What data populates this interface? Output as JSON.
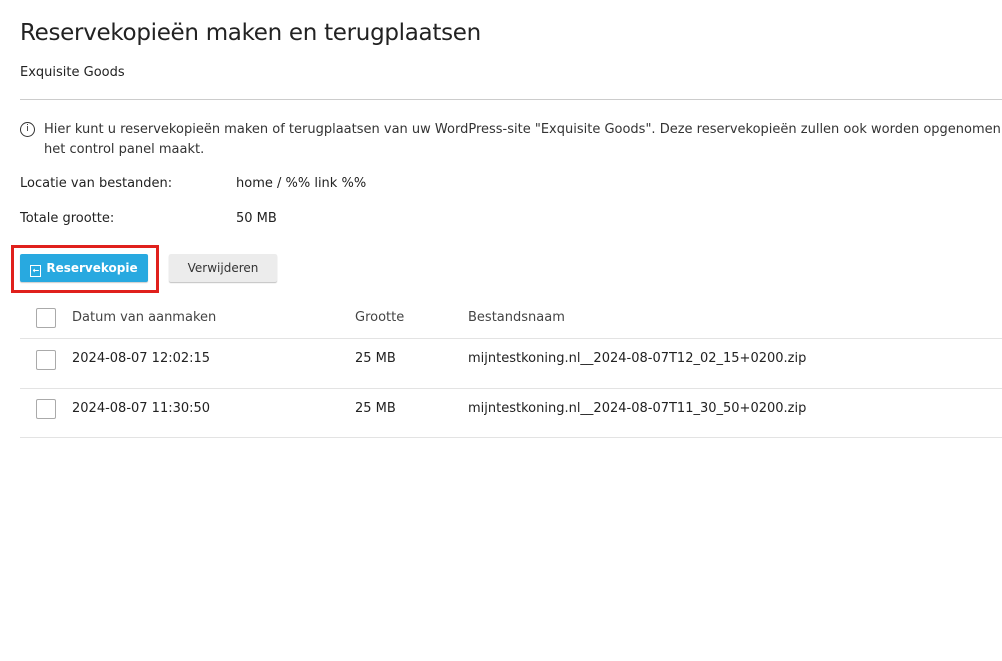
{
  "header": {
    "title": "Reservekopieën maken en terugplaatsen",
    "subtitle": "Exquisite Goods"
  },
  "info": {
    "icon": "info-circle-icon",
    "text": "Hier kunt u reservekopieën maken of terugplaatsen van uw WordPress-site \"Exquisite Goods\". Deze reservekopieën zullen ook worden opgenomen in de reservekopieën die het control panel maakt.",
    "line1": "Hier kunt u reservekopieën maken of terugplaatsen van uw WordPress-site \"Exquisite Goods\". Deze reservekopieën zullen ook worden opgenomen",
    "line2": "het control panel maakt."
  },
  "details": {
    "location_label": "Locatie van bestanden:",
    "location_value": "home / %% link %%",
    "size_label": "Totale grootte:",
    "size_value": "50 MB"
  },
  "toolbar": {
    "backup_label": "Reservekopie",
    "delete_label": "Verwijderen",
    "accent": "#28a9e0",
    "highlight": "#e0201c"
  },
  "table": {
    "columns": [
      "Datum van aanmaken",
      "Grootte",
      "Bestandsnaam"
    ],
    "rows": [
      {
        "date": "2024-08-07 12:02:15",
        "size": "25 MB",
        "name": "mijntestkoning.nl__2024-08-07T12_02_15+0200.zip"
      },
      {
        "date": "2024-08-07 11:30:50",
        "size": "25 MB",
        "name": "mijntestkoning.nl__2024-08-07T11_30_50+0200.zip"
      }
    ]
  }
}
